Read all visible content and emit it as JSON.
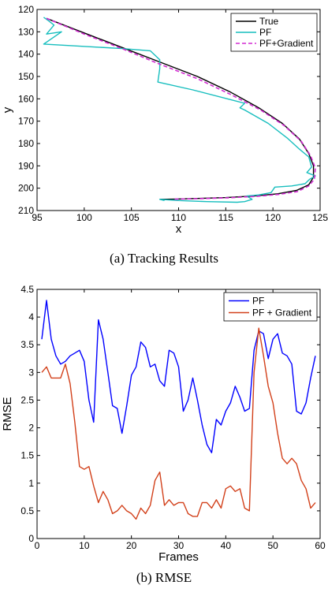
{
  "captions": {
    "a": "(a)  Tracking Results",
    "b": "(b)  RMSE"
  },
  "chart_data": [
    {
      "type": "line",
      "xlabel": "x",
      "ylabel": "y",
      "xlim": [
        95,
        125
      ],
      "ylim": [
        210,
        120
      ],
      "y_axis_inverted": true,
      "xticks": [
        95,
        100,
        105,
        110,
        115,
        120,
        125
      ],
      "yticks": [
        120,
        130,
        140,
        150,
        160,
        170,
        180,
        190,
        200,
        210
      ],
      "grid": false,
      "legend_position": "top-right",
      "series": [
        {
          "name": "True",
          "color": "#000000",
          "dash": "solid",
          "x": [
            96.0,
            100.0,
            104.0,
            108.0,
            112.0,
            115.5,
            118.5,
            121.0,
            122.8,
            123.8,
            124.3,
            124.3,
            123.8,
            122.5,
            120.5,
            118.0,
            115.0,
            112.0,
            109.5,
            108.0
          ],
          "y": [
            124.0,
            130.5,
            137.0,
            143.5,
            150.0,
            157.0,
            164.0,
            171.0,
            178.0,
            184.5,
            190.0,
            195.0,
            198.5,
            201.0,
            202.5,
            203.5,
            204.2,
            204.6,
            204.9,
            205.0
          ]
        },
        {
          "name": "PF",
          "color": "#17bebe",
          "dash": "solid",
          "x": [
            95.7,
            96.2,
            96.8,
            96.0,
            97.6,
            95.7,
            104.0,
            107.0,
            108.0,
            108.0,
            107.8,
            111.5,
            117.0,
            116.5,
            117.0,
            119.5,
            121.5,
            122.8,
            123.8,
            124.1,
            123.6,
            124.5,
            123.9,
            123.4,
            122.0,
            120.2,
            119.8,
            118.5,
            117.2,
            117.8,
            117.0,
            116.2,
            113.0,
            110.0,
            108.0,
            108.5
          ],
          "y": [
            123.5,
            125.0,
            127.0,
            131.0,
            130.0,
            135.5,
            137.5,
            138.5,
            142.5,
            146.5,
            152.5,
            156.0,
            162.0,
            164.0,
            165.0,
            171.0,
            177.5,
            182.5,
            186.0,
            190.5,
            193.0,
            194.5,
            196.0,
            198.0,
            199.0,
            199.5,
            202.0,
            203.0,
            203.5,
            205.0,
            206.0,
            206.3,
            206.0,
            205.5,
            205.0,
            205.5
          ]
        },
        {
          "name": "PF+Gradient",
          "color": "#d22ad2",
          "dash": "dashed",
          "x": [
            96.0,
            100.0,
            104.0,
            108.0,
            112.0,
            115.5,
            118.7,
            121.2,
            123.0,
            124.0,
            124.5,
            124.4,
            123.8,
            122.6,
            120.6,
            118.2,
            115.2,
            112.0,
            109.4
          ],
          "y": [
            124.0,
            131.0,
            137.5,
            144.5,
            151.0,
            158.0,
            165.0,
            172.0,
            179.0,
            185.5,
            191.0,
            196.0,
            199.0,
            201.5,
            202.8,
            203.7,
            204.3,
            204.7,
            204.9
          ]
        }
      ]
    },
    {
      "type": "line",
      "xlabel": "Frames",
      "ylabel": "RMSE",
      "xlim": [
        0,
        60
      ],
      "ylim": [
        0,
        4.5
      ],
      "xticks": [
        0,
        10,
        20,
        30,
        40,
        50,
        60
      ],
      "yticks": [
        0,
        0.5,
        1,
        1.5,
        2,
        2.5,
        3,
        3.5,
        4,
        4.5
      ],
      "grid": false,
      "legend_position": "top-right",
      "x": [
        1,
        2,
        3,
        4,
        5,
        6,
        7,
        8,
        9,
        10,
        11,
        12,
        13,
        14,
        15,
        16,
        17,
        18,
        19,
        20,
        21,
        22,
        23,
        24,
        25,
        26,
        27,
        28,
        29,
        30,
        31,
        32,
        33,
        34,
        35,
        36,
        37,
        38,
        39,
        40,
        41,
        42,
        43,
        44,
        45,
        46,
        47,
        48,
        49,
        50,
        51,
        52,
        53,
        54,
        55,
        56,
        57,
        58,
        59
      ],
      "series": [
        {
          "name": "PF",
          "color": "#0000ff",
          "values": [
            3.6,
            4.3,
            3.6,
            3.3,
            3.15,
            3.2,
            3.3,
            3.35,
            3.4,
            3.2,
            2.5,
            2.1,
            3.95,
            3.6,
            3.0,
            2.4,
            2.35,
            1.9,
            2.4,
            2.95,
            3.1,
            3.55,
            3.45,
            3.1,
            3.15,
            2.85,
            2.75,
            3.4,
            3.35,
            3.1,
            2.3,
            2.5,
            2.9,
            2.5,
            2.05,
            1.7,
            1.55,
            2.15,
            2.05,
            2.3,
            2.45,
            2.75,
            2.55,
            2.3,
            2.35,
            3.4,
            3.75,
            3.7,
            3.25,
            3.6,
            3.7,
            3.35,
            3.3,
            3.15,
            2.3,
            2.25,
            2.45,
            2.9,
            3.3
          ]
        },
        {
          "name": "PF + Gradient",
          "color": "#d2401a",
          "values": [
            3.0,
            3.1,
            2.9,
            2.9,
            2.9,
            3.15,
            2.8,
            2.1,
            1.3,
            1.25,
            1.3,
            0.95,
            0.65,
            0.85,
            0.7,
            0.45,
            0.5,
            0.6,
            0.5,
            0.45,
            0.35,
            0.55,
            0.45,
            0.6,
            1.05,
            1.2,
            0.6,
            0.7,
            0.6,
            0.65,
            0.65,
            0.45,
            0.4,
            0.4,
            0.65,
            0.65,
            0.55,
            0.7,
            0.55,
            0.9,
            0.95,
            0.85,
            0.9,
            0.55,
            0.5,
            3.0,
            3.8,
            3.3,
            2.75,
            2.45,
            1.9,
            1.45,
            1.35,
            1.45,
            1.35,
            1.05,
            0.9,
            0.55,
            0.65
          ]
        }
      ]
    }
  ]
}
